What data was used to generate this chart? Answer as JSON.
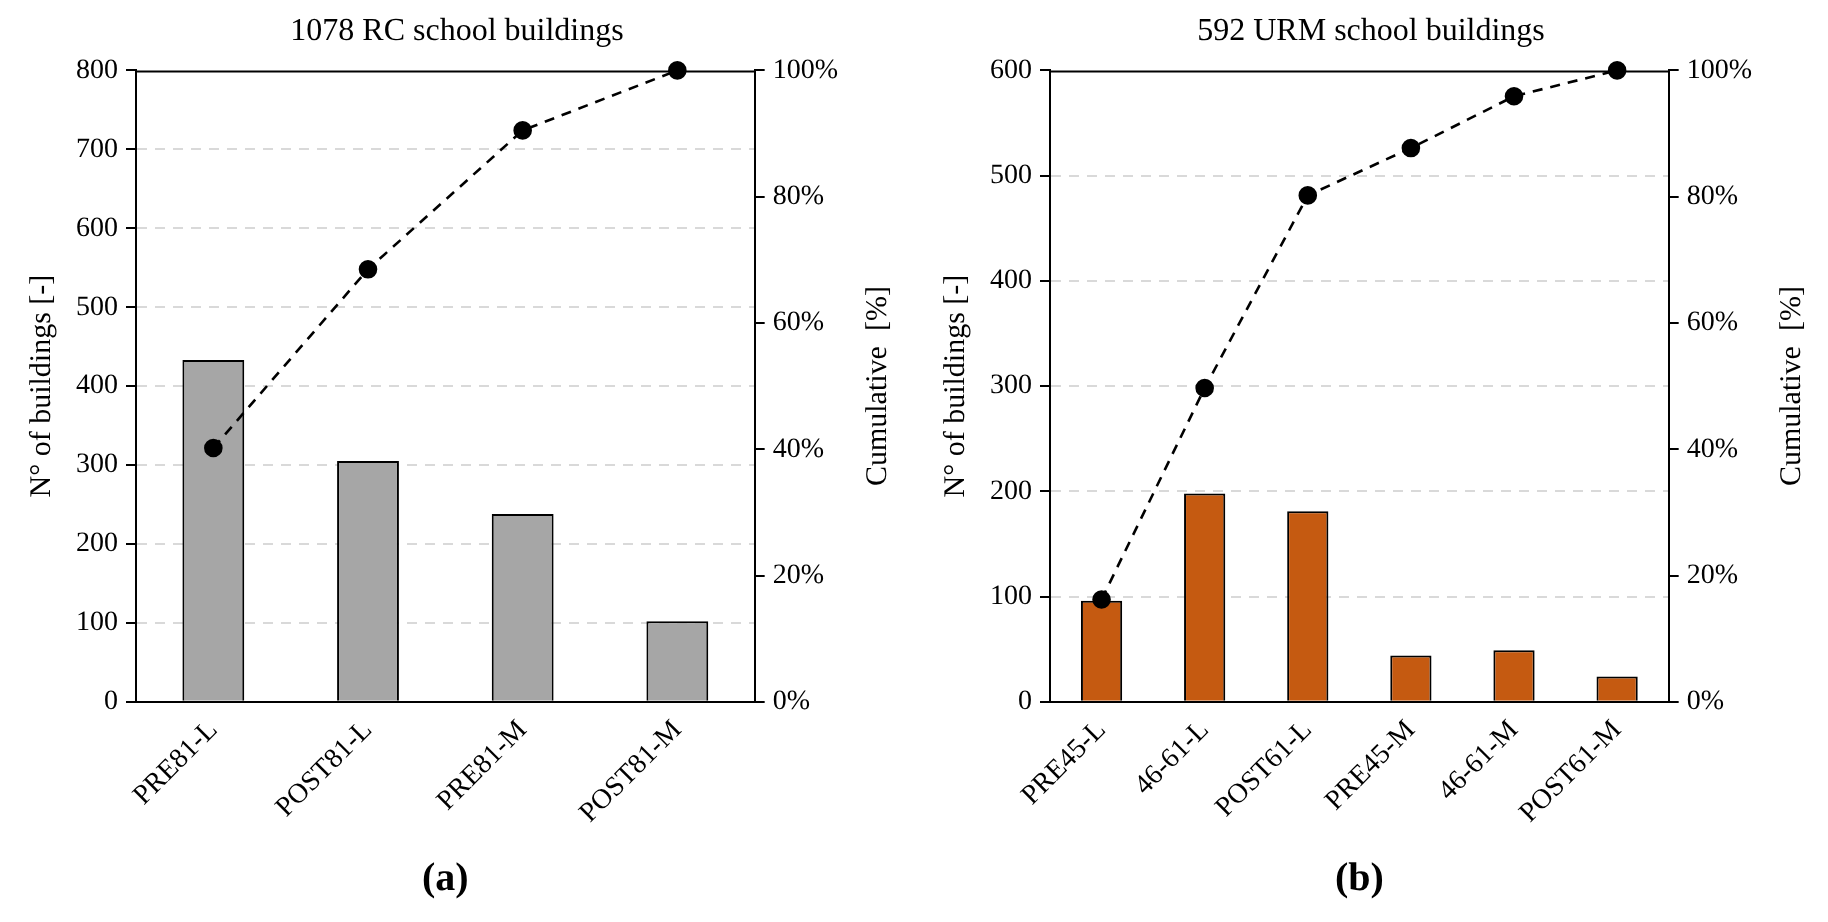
{
  "chart_data": [
    {
      "type": "bar",
      "title": "1078 RC school buildings",
      "ylabel": "N° of buildings [-]",
      "y2label": "Cumulative  [%]",
      "annotations": [
        "(a)"
      ],
      "categories": [
        "PRE81-L",
        "POST81-L",
        "PRE81-M",
        "POST81-M"
      ],
      "series": [
        {
          "color": "#a6a6a6",
          "values": [
            433,
            305,
            238,
            102
          ]
        },
        {
          "type": "line",
          "axis": "y2",
          "color": "#000000",
          "marker": "circle",
          "line_style": "dashed",
          "values": [
            40.2,
            68.5,
            90.5,
            100
          ]
        }
      ],
      "ylim": [
        0,
        800
      ],
      "yticks": [
        0,
        100,
        200,
        300,
        400,
        500,
        600,
        700,
        800
      ],
      "y2lim": [
        0,
        100
      ],
      "y2ticks": [
        {
          "value": 0,
          "label": "0%"
        },
        {
          "value": 20,
          "label": "20%"
        },
        {
          "value": 40,
          "label": "40%"
        },
        {
          "value": 60,
          "label": "60%"
        },
        {
          "value": 80,
          "label": "80%"
        },
        {
          "value": 100,
          "label": "100%"
        }
      ],
      "grid": "y",
      "legend": false
    },
    {
      "type": "bar",
      "title": "592 URM school buildings",
      "ylabel": "N° of buildings [-]",
      "y2label": "Cumulative  [%]",
      "annotations": [
        "(b)"
      ],
      "categories": [
        "PRE45-L",
        "46-61-L",
        "POST61-L",
        "PRE45-M",
        "46-61-M",
        "POST61-M"
      ],
      "series": [
        {
          "color": "#c55a11",
          "values": [
            96,
            198,
            181,
            44,
            49,
            24
          ]
        },
        {
          "type": "line",
          "axis": "y2",
          "color": "#000000",
          "marker": "circle",
          "line_style": "dashed",
          "values": [
            16.2,
            49.7,
            80.2,
            87.7,
            95.9,
            100
          ]
        }
      ],
      "ylim": [
        0,
        600
      ],
      "yticks": [
        0,
        100,
        200,
        300,
        400,
        500,
        600
      ],
      "y2lim": [
        0,
        100
      ],
      "y2ticks": [
        {
          "value": 0,
          "label": "0%"
        },
        {
          "value": 20,
          "label": "20%"
        },
        {
          "value": 40,
          "label": "40%"
        },
        {
          "value": 60,
          "label": "60%"
        },
        {
          "value": 80,
          "label": "80%"
        },
        {
          "value": 100,
          "label": "100%"
        }
      ],
      "grid": "y",
      "legend": false
    }
  ]
}
